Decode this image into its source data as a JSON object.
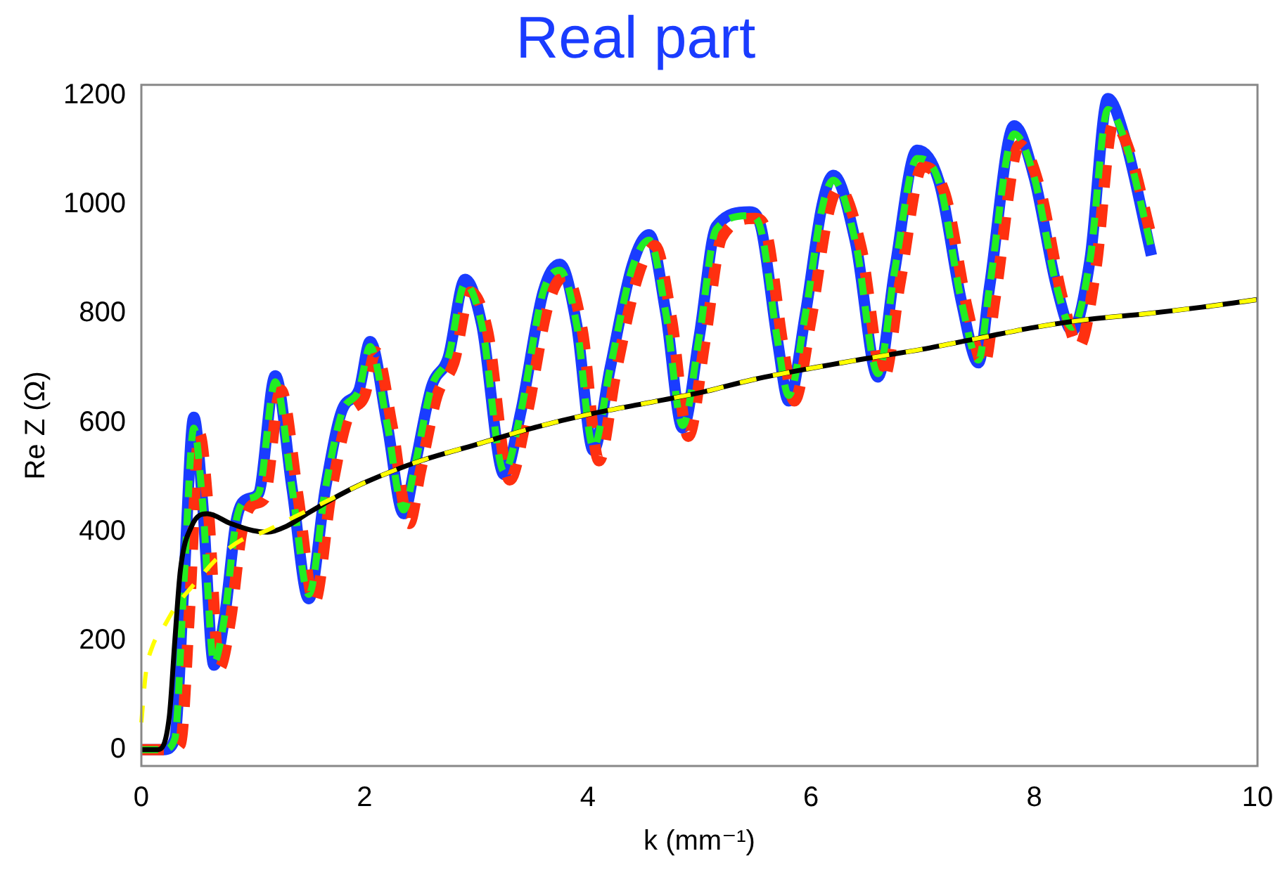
{
  "chart_data": {
    "type": "line",
    "title": "Real part",
    "xlabel": "k (mm⁻¹)",
    "ylabel": "Re Z (Ω)",
    "xlim": [
      0,
      10
    ],
    "ylim": [
      -30,
      1220
    ],
    "xticks": [
      0,
      2,
      4,
      6,
      8,
      10
    ],
    "yticks": [
      0,
      200,
      400,
      600,
      800,
      1000,
      1200
    ],
    "grid": false,
    "legend": false,
    "marker": "none",
    "series": [
      {
        "color": "#1a3cff",
        "line_style": "solid",
        "x": [
          0,
          0.2,
          0.3,
          0.38,
          0.47,
          0.55,
          0.65,
          0.75,
          0.85,
          0.95,
          1.05,
          1.2,
          1.35,
          1.5,
          1.65,
          1.8,
          1.95,
          2.05,
          2.2,
          2.35,
          2.45,
          2.6,
          2.75,
          2.9,
          3.05,
          3.25,
          3.4,
          3.6,
          3.75,
          3.9,
          4.05,
          4.2,
          4.4,
          4.55,
          4.7,
          4.85,
          5.0,
          5.15,
          5.45,
          5.55,
          5.7,
          5.8,
          5.95,
          6.1,
          6.2,
          6.4,
          6.6,
          6.75,
          6.95,
          7.15,
          7.35,
          7.5,
          7.6,
          7.82,
          8.0,
          8.2,
          8.34,
          8.5,
          8.66,
          8.8,
          9.05
        ],
        "values": [
          0,
          0,
          20,
          300,
          610,
          450,
          155,
          250,
          420,
          460,
          470,
          686,
          480,
          277,
          480,
          624,
          660,
          749,
          600,
          433,
          520,
          666,
          720,
          863,
          780,
          505,
          620,
          840,
          891,
          780,
          549,
          700,
          890,
          945,
          800,
          590,
          760,
          960,
          987,
          960,
          750,
          640,
          800,
          1000,
          1054,
          930,
          684,
          880,
          1100,
          1040,
          820,
          710,
          850,
          1145,
          1050,
          850,
          769,
          900,
          1195,
          1130,
          907
        ]
      },
      {
        "color": "#ff3010",
        "line_style": "dashed",
        "x": [
          0,
          0.25,
          0.35,
          0.43,
          0.52,
          0.6,
          0.7,
          0.8,
          0.9,
          1.0,
          1.1,
          1.25,
          1.4,
          1.55,
          1.7,
          1.85,
          2.0,
          2.1,
          2.25,
          2.4,
          2.5,
          2.65,
          2.8,
          2.95,
          3.1,
          3.3,
          3.45,
          3.65,
          3.8,
          3.95,
          4.1,
          4.25,
          4.45,
          4.6,
          4.75,
          4.9,
          5.05,
          5.2,
          5.5,
          5.6,
          5.75,
          5.85,
          6.0,
          6.15,
          6.25,
          6.45,
          6.65,
          6.8,
          7.0,
          7.2,
          7.4,
          7.55,
          7.65,
          7.87,
          8.05,
          8.25,
          8.4,
          8.55,
          8.71,
          8.85,
          9.05
        ],
        "values": [
          0,
          0,
          10,
          250,
          580,
          440,
          150,
          240,
          400,
          450,
          460,
          660,
          470,
          270,
          470,
          610,
          650,
          730,
          590,
          415,
          510,
          650,
          710,
          840,
          770,
          495,
          610,
          820,
          870,
          770,
          530,
          690,
          870,
          925,
          790,
          575,
          750,
          940,
          975,
          950,
          740,
          640,
          790,
          980,
          1030,
          920,
          680,
          860,
          1070,
          1020,
          810,
          705,
          830,
          1110,
          1030,
          830,
          740,
          880,
          1150,
          1100,
          940
        ]
      },
      {
        "color": "#22ee22",
        "line_style": "dashed",
        "x": [
          0,
          0.2,
          0.3,
          0.38,
          0.47,
          0.55,
          0.65,
          0.75,
          0.85,
          0.95,
          1.05,
          1.2,
          1.35,
          1.5,
          1.65,
          1.8,
          1.95,
          2.05,
          2.2,
          2.35,
          2.45,
          2.6,
          2.75,
          2.9,
          3.05,
          3.25,
          3.4,
          3.6,
          3.75,
          3.9,
          4.05,
          4.2,
          4.4,
          4.55,
          4.7,
          4.85,
          5.0,
          5.15,
          5.45,
          5.55,
          5.7,
          5.8,
          5.95,
          6.1,
          6.2,
          6.4,
          6.6,
          6.75,
          6.95,
          7.15,
          7.35,
          7.5,
          7.6,
          7.82,
          8.0,
          8.2,
          8.34,
          8.5,
          8.66,
          8.8,
          9.05
        ],
        "values": [
          0,
          0,
          20,
          300,
          590,
          450,
          160,
          250,
          420,
          460,
          470,
          675,
          480,
          285,
          480,
          620,
          660,
          740,
          600,
          440,
          520,
          666,
          720,
          855,
          780,
          510,
          620,
          840,
          880,
          780,
          555,
          700,
          885,
          935,
          800,
          595,
          760,
          955,
          980,
          955,
          750,
          650,
          800,
          995,
          1045,
          930,
          690,
          880,
          1085,
          1040,
          820,
          715,
          850,
          1130,
          1050,
          850,
          775,
          900,
          1175,
          1125,
          920
        ]
      },
      {
        "color": "#000000",
        "line_style": "solid",
        "x": [
          0,
          0.15,
          0.25,
          0.3,
          0.35,
          0.45,
          0.59,
          0.8,
          1.0,
          1.13,
          1.3,
          1.5,
          1.8,
          2.0,
          2.5,
          3.0,
          3.5,
          4.0,
          4.5,
          5.0,
          5.5,
          6.0,
          6.5,
          7.0,
          7.5,
          8.0,
          8.5,
          9.0,
          9.5,
          10
        ],
        "values": [
          0,
          0,
          60,
          200,
          330,
          410,
          433,
          415,
          402,
          399,
          410,
          435,
          470,
          490,
          530,
          560,
          590,
          615,
          635,
          655,
          680,
          700,
          718,
          735,
          755,
          775,
          790,
          800,
          812,
          826
        ]
      },
      {
        "color": "#ffff00",
        "line_style": "dashed",
        "x": [
          0,
          0.04,
          0.1,
          0.2,
          0.3,
          0.5,
          0.7,
          0.9,
          1.1,
          1.3,
          1.5,
          1.8,
          2.0,
          2.5,
          3.0,
          3.5,
          4.0,
          4.5,
          5.0,
          5.5,
          6.0,
          6.5,
          7.0,
          7.5,
          8.0,
          8.5,
          9.0,
          9.5,
          10
        ],
        "values": [
          50,
          140,
          190,
          225,
          260,
          310,
          355,
          385,
          400,
          420,
          440,
          470,
          490,
          530,
          560,
          590,
          615,
          635,
          655,
          680,
          700,
          718,
          735,
          755,
          775,
          790,
          800,
          812,
          826
        ]
      }
    ]
  }
}
